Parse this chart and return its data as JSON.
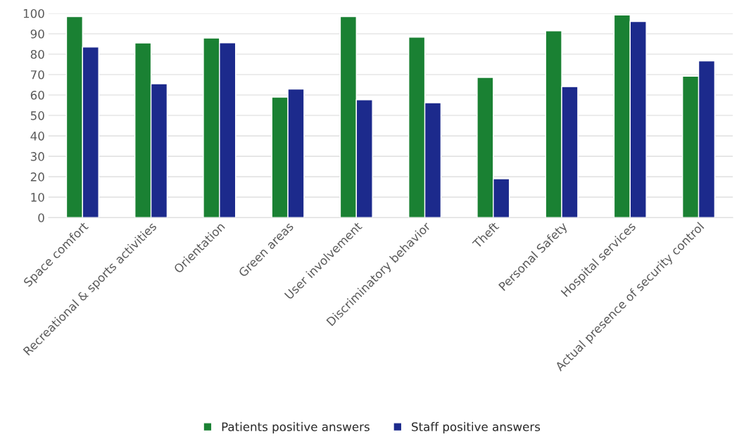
{
  "chart_data": {
    "type": "bar",
    "categories": [
      "Space comfort",
      "Recreational & sports activities",
      "Orientation",
      "Green areas",
      "User involvement",
      "Discriminatory behavior",
      "Theft",
      "Personal Safety",
      "Hospital services",
      "Actual presence of security control"
    ],
    "series": [
      {
        "name": "Patients positive answers",
        "color": "#1a8133",
        "values": [
          98.4,
          85.5,
          87.9,
          59,
          98.4,
          88.3,
          68.6,
          91.4,
          99.2,
          69.2
        ]
      },
      {
        "name": "Staff positive answers",
        "color": "#1c2a8c",
        "values": [
          83.5,
          65.5,
          85.6,
          62.9,
          57.7,
          56.2,
          19,
          64.1,
          96,
          76.7
        ]
      }
    ],
    "ylim": [
      0,
      100
    ],
    "yticks": [
      0,
      10,
      20,
      30,
      40,
      50,
      60,
      70,
      80,
      90,
      100
    ],
    "grid": "y",
    "legend": "bottom"
  }
}
